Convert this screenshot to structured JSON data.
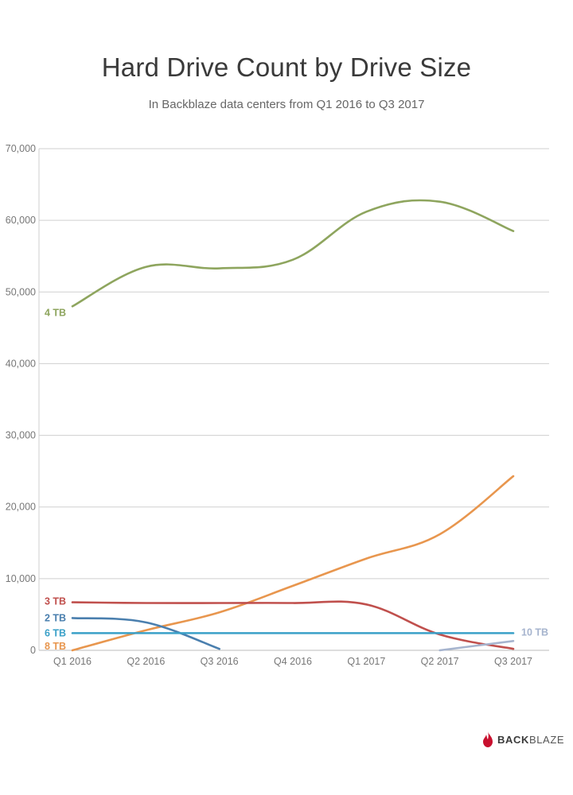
{
  "header": {
    "title": "Hard Drive Count by Drive Size",
    "subtitle": "In Backblaze data centers from Q1 2016 to Q3 2017"
  },
  "brand": {
    "name_bold": "BACK",
    "name_thin": "BLAZE",
    "icon": "flame-icon",
    "color": "#c8102e"
  },
  "chart_data": {
    "type": "line",
    "title": "Hard Drive Count by Drive Size",
    "subtitle": "In Backblaze data centers from Q1 2016 to Q3 2017",
    "categories": [
      "Q1 2016",
      "Q2 2016",
      "Q3 2016",
      "Q4 2016",
      "Q1 2017",
      "Q2 2017",
      "Q3 2017"
    ],
    "ylim": [
      0,
      70000
    ],
    "yticks": [
      "0",
      "10,000",
      "20,000",
      "30,000",
      "40,000",
      "50,000",
      "60,000",
      "70,000"
    ],
    "ytick_values": [
      0,
      10000,
      20000,
      30000,
      40000,
      50000,
      60000,
      70000
    ],
    "grid": true,
    "series": [
      {
        "name": "4 TB",
        "color": "#8ea55e",
        "label_side": "start",
        "values": [
          48000,
          53500,
          53300,
          54500,
          61200,
          62600,
          58500
        ]
      },
      {
        "name": "8 TB",
        "color": "#e8964e",
        "label_side": "start",
        "values": [
          0,
          2800,
          5300,
          9000,
          12800,
          16200,
          24300
        ]
      },
      {
        "name": "3 TB",
        "color": "#c0504d",
        "label_side": "start",
        "values": [
          6700,
          6600,
          6600,
          6600,
          6400,
          2200,
          200
        ]
      },
      {
        "name": "2 TB",
        "color": "#4a7fae",
        "label_side": "start",
        "values": [
          4500,
          3900,
          200,
          null,
          null,
          null,
          null
        ]
      },
      {
        "name": "6 TB",
        "color": "#3aa0c8",
        "label_side": "start",
        "values": [
          2400,
          2400,
          2400,
          2400,
          2400,
          2400,
          2400
        ]
      },
      {
        "name": "10 TB",
        "color": "#a6b4ce",
        "label_side": "end",
        "values": [
          null,
          null,
          null,
          null,
          null,
          0,
          1300
        ]
      }
    ]
  }
}
